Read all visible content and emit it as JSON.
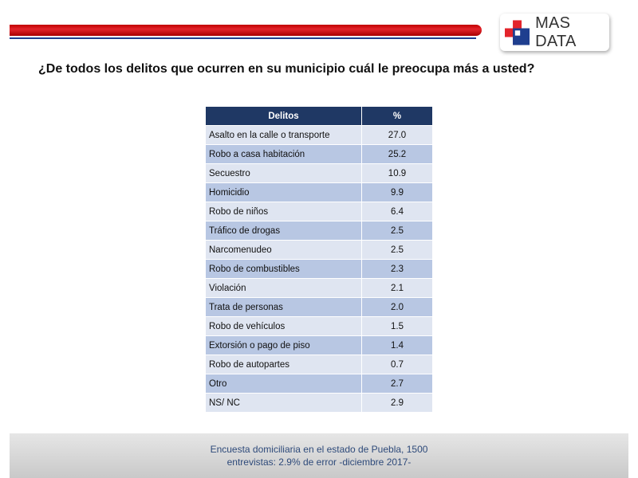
{
  "header": {
    "logo_text": "MAS DATA",
    "logo_colors": {
      "red": "#e3242b",
      "blue": "#1f3f8f"
    }
  },
  "question": "¿De todos los delitos que ocurren en su municipio cuál le preocupa más a usted?",
  "table": {
    "headers": [
      "Delitos",
      "%"
    ],
    "rows": [
      {
        "name": "Asalto en la calle o transporte",
        "pct": "27.0"
      },
      {
        "name": "Robo a casa habitación",
        "pct": "25.2"
      },
      {
        "name": "Secuestro",
        "pct": "10.9"
      },
      {
        "name": "Homicidio",
        "pct": "9.9"
      },
      {
        "name": "Robo de niños",
        "pct": "6.4"
      },
      {
        "name": "Tráfico de drogas",
        "pct": "2.5"
      },
      {
        "name": "Narcomenudeo",
        "pct": "2.5"
      },
      {
        "name": "Robo de combustibles",
        "pct": "2.3"
      },
      {
        "name": "Violación",
        "pct": "2.1"
      },
      {
        "name": "Trata de personas",
        "pct": "2.0"
      },
      {
        "name": "Robo de vehículos",
        "pct": "1.5"
      },
      {
        "name": "Extorsión o pago de piso",
        "pct": "1.4"
      },
      {
        "name": "Robo de autopartes",
        "pct": "0.7"
      },
      {
        "name": "Otro",
        "pct": "2.7"
      },
      {
        "name": "NS/ NC",
        "pct": "2.9"
      }
    ]
  },
  "footer": {
    "line1": "Encuesta domiciliaria en el estado de Puebla, 1500",
    "line2": "entrevistas: 2.9% de error -diciembre 2017-"
  }
}
